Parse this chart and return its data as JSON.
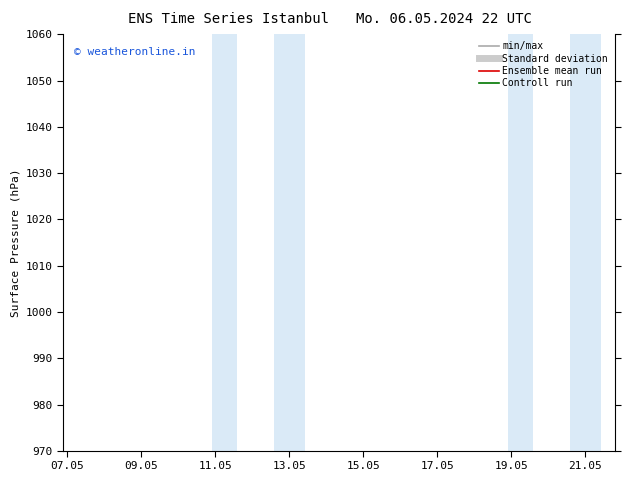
{
  "title_left": "ENS Time Series Istanbul",
  "title_right": "Mo. 06.05.2024 22 UTC",
  "ylabel": "Surface Pressure (hPa)",
  "ylim": [
    970,
    1060
  ],
  "yticks": [
    970,
    980,
    990,
    1000,
    1010,
    1020,
    1030,
    1040,
    1050,
    1060
  ],
  "xtick_labels": [
    "07.05",
    "09.05",
    "11.05",
    "13.05",
    "15.05",
    "17.05",
    "19.05",
    "21.05"
  ],
  "xtick_values": [
    0,
    2,
    4,
    6,
    8,
    10,
    12,
    14
  ],
  "xlim": [
    -0.1,
    14.8
  ],
  "shade_bands": [
    {
      "xstart": 3.92,
      "xend": 4.58
    },
    {
      "xstart": 5.58,
      "xend": 6.42
    },
    {
      "xstart": 11.92,
      "xend": 12.58
    },
    {
      "xstart": 13.58,
      "xend": 14.42
    }
  ],
  "shade_color": "#daeaf7",
  "watermark_text": "© weatheronline.in",
  "watermark_color": "#1a56db",
  "legend_entries": [
    {
      "label": "min/max",
      "color": "#aaaaaa",
      "lw": 1.2,
      "style": "solid"
    },
    {
      "label": "Standard deviation",
      "color": "#cccccc",
      "lw": 5,
      "style": "solid"
    },
    {
      "label": "Ensemble mean run",
      "color": "#dd0000",
      "lw": 1.2,
      "style": "solid"
    },
    {
      "label": "Controll run",
      "color": "#007700",
      "lw": 1.2,
      "style": "solid"
    }
  ],
  "bg_color": "#ffffff",
  "spine_color": "#000000",
  "tick_label_fontsize": 8,
  "axis_label_fontsize": 8,
  "title_fontsize": 10,
  "legend_fontsize": 7
}
